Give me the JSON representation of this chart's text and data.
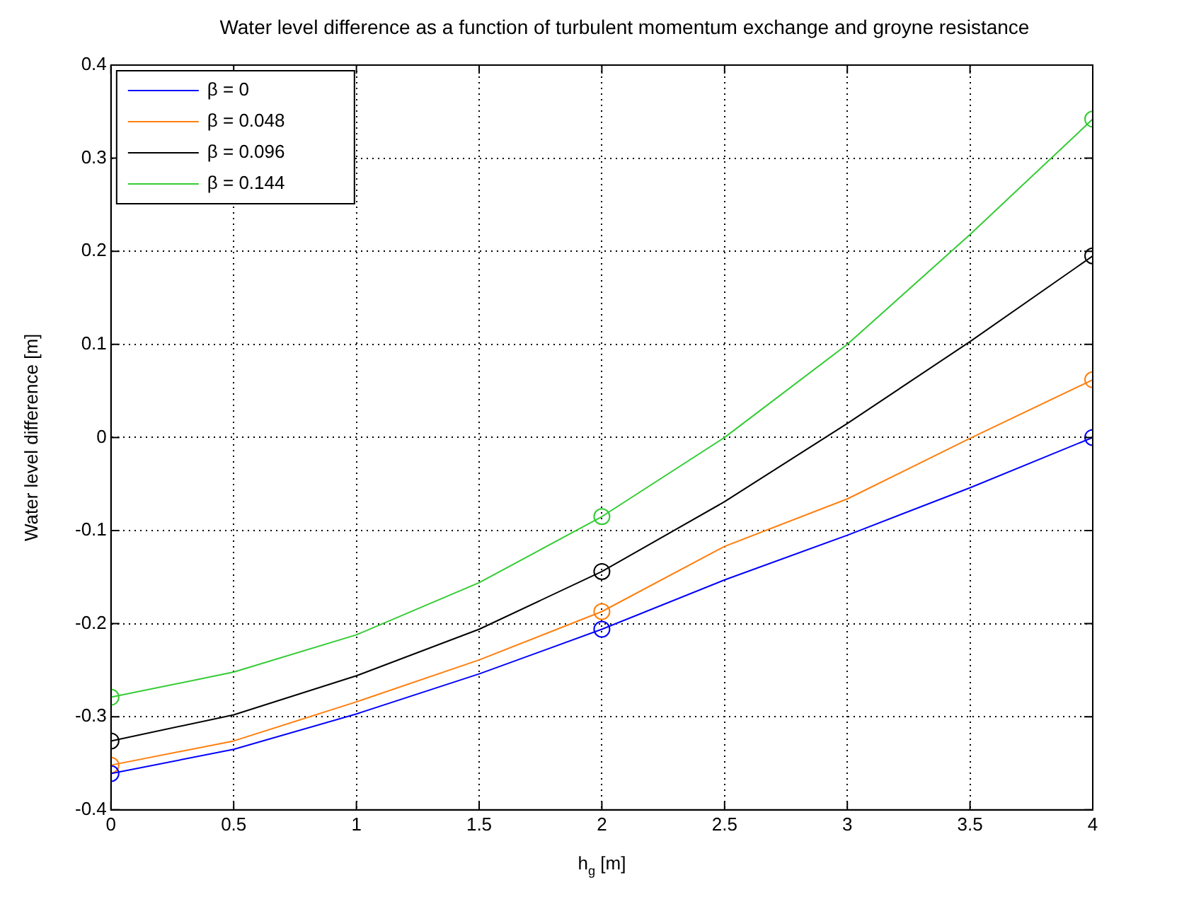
{
  "chart_data": {
    "type": "line",
    "title": "Water level difference as a function of turbulent momentum exchange and groyne resistance",
    "xlabel": "h$_{g}$ [m]",
    "ylabel": "Water level difference [m]",
    "xlim": [
      0,
      4
    ],
    "xticks": [
      0,
      0.5,
      1,
      1.5,
      2,
      2.5,
      3,
      3.5,
      4
    ],
    "ylim": [
      -0.4,
      0.4
    ],
    "yticks": [
      -0.4,
      -0.3,
      -0.2,
      -0.1,
      0,
      0.1,
      0.2,
      0.3,
      0.4
    ],
    "grid": true,
    "legend": "top left",
    "line_style": "solid",
    "series": [
      {
        "name": "β = 0",
        "color": "#0000ff",
        "marker": "none",
        "x": [
          0,
          0.5,
          1,
          1.5,
          2,
          2.5,
          3,
          3.5,
          4
        ],
        "values": [
          -0.361,
          -0.335,
          -0.297,
          -0.254,
          -0.206,
          -0.153,
          -0.105,
          -0.054,
          0
        ]
      },
      {
        "name": "β = 0.048",
        "color": "#ff7f0e",
        "marker": "none",
        "x": [
          0,
          0.5,
          1,
          1.5,
          2,
          2.5,
          3,
          3.5,
          4
        ],
        "values": [
          -0.352,
          -0.326,
          -0.284,
          -0.239,
          -0.187,
          -0.117,
          -0.066,
          -0.001,
          0.062
        ]
      },
      {
        "name": "β = 0.096",
        "color": "#000000",
        "marker": "none",
        "x": [
          0,
          0.5,
          1,
          1.5,
          2,
          2.5,
          3,
          3.5,
          4
        ],
        "values": [
          -0.326,
          -0.298,
          -0.256,
          -0.206,
          -0.144,
          -0.069,
          0.015,
          0.103,
          0.195
        ]
      },
      {
        "name": "β = 0.144",
        "color": "#33cc33",
        "marker": "none",
        "x": [
          0,
          0.5,
          1,
          1.5,
          2,
          2.5,
          3,
          3.5,
          4
        ],
        "values": [
          -0.279,
          -0.252,
          -0.212,
          -0.156,
          -0.085,
          0,
          0.1,
          0.218,
          0.342
        ]
      },
      {
        "color": "#0000ff",
        "type": "scatter",
        "marker": "circle",
        "x": [
          0,
          2,
          4
        ],
        "values": [
          -0.361,
          -0.206,
          0
        ]
      },
      {
        "color": "#ff7f0e",
        "type": "scatter",
        "marker": "circle",
        "x": [
          0,
          2,
          4
        ],
        "values": [
          -0.352,
          -0.187,
          0.062
        ]
      },
      {
        "color": "#000000",
        "type": "scatter",
        "marker": "circle",
        "x": [
          0,
          2,
          4
        ],
        "values": [
          -0.326,
          -0.144,
          0.195
        ]
      },
      {
        "color": "#33cc33",
        "type": "scatter",
        "marker": "circle",
        "x": [
          0,
          2,
          4
        ],
        "values": [
          -0.279,
          -0.085,
          0.342
        ]
      }
    ]
  }
}
